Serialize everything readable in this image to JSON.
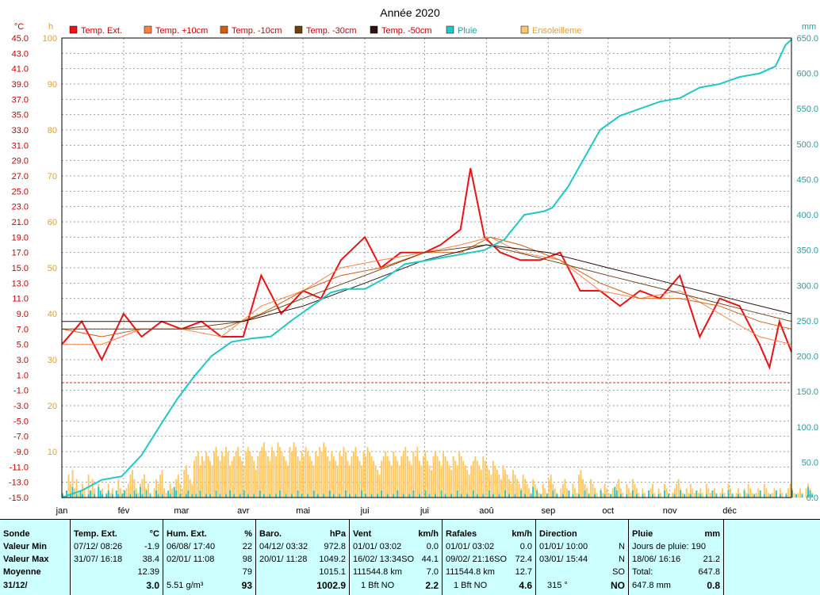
{
  "chart_data": {
    "type": "line",
    "title": "Année 2020",
    "left_unit": "°C",
    "sun_unit": "h",
    "rain_unit": "mm",
    "temp_axis": {
      "min": -15,
      "max": 45,
      "step": 2,
      "ticks": [
        "45.0",
        "43.0",
        "41.0",
        "39.0",
        "37.0",
        "35.0",
        "33.0",
        "31.0",
        "29.0",
        "27.0",
        "25.0",
        "23.0",
        "21.0",
        "19.0",
        "17.0",
        "15.0",
        "13.0",
        "11.0",
        "9.0",
        "7.0",
        "5.0",
        "3.0",
        "1.0",
        "-1.0",
        "-3.0",
        "-5.0",
        "-7.0",
        "-9.0",
        "-11.0",
        "-13.0",
        "-15.0"
      ]
    },
    "sun_axis": {
      "min": 0,
      "max": 100,
      "ticks": [
        "100",
        "90",
        "80",
        "70",
        "60",
        "50",
        "40",
        "30",
        "20",
        "10"
      ]
    },
    "rain_axis": {
      "min": 0,
      "max": 650,
      "ticks": [
        "650.0",
        "600.0",
        "550.0",
        "500.0",
        "450.0",
        "400.0",
        "350.0",
        "300.0",
        "250.0",
        "200.0",
        "150.0",
        "100.0",
        "50.0",
        "0.0"
      ]
    },
    "months": [
      "jan",
      "fév",
      "mar",
      "avr",
      "mai",
      "jui",
      "jui",
      "aoû",
      "sep",
      "oct",
      "nov",
      "déc"
    ],
    "frost_line": 0,
    "legend": [
      {
        "name": "Temp. Ext.",
        "color": "#ee1111"
      },
      {
        "name": "Temp. +10cm",
        "color": "#ff8040"
      },
      {
        "name": "Temp. -10cm",
        "color": "#d06010"
      },
      {
        "name": "Temp. -30cm",
        "color": "#704010"
      },
      {
        "name": "Temp. -50cm",
        "color": "#301010"
      },
      {
        "name": "Pluie",
        "color": "#20c8c8"
      },
      {
        "name": "Ensoleilleme",
        "color": "#ffc860"
      }
    ],
    "series": [
      {
        "name": "Temp. Ext.",
        "x": [
          0,
          10,
          20,
          31,
          40,
          50,
          60,
          70,
          80,
          91,
          100,
          110,
          121,
          130,
          140,
          152,
          160,
          170,
          182,
          190,
          200,
          205,
          212,
          220,
          230,
          240,
          250,
          260,
          270,
          280,
          290,
          300,
          310,
          320,
          330,
          340,
          350,
          355,
          360,
          366
        ],
        "values": [
          5,
          8,
          3,
          9,
          6,
          8,
          7,
          8,
          6,
          6,
          14,
          9,
          12,
          11,
          16,
          19,
          15,
          17,
          17,
          18,
          20,
          28,
          19,
          17,
          16,
          16,
          17,
          12,
          12,
          10,
          12,
          11,
          14,
          6,
          11,
          10,
          5,
          2,
          8,
          4
        ]
      },
      {
        "name": "Temp. +10cm",
        "x": [
          0,
          20,
          40,
          60,
          80,
          100,
          121,
          140,
          160,
          182,
          200,
          215,
          230,
          250,
          270,
          290,
          310,
          330,
          350,
          366
        ],
        "values": [
          5,
          5,
          7,
          7,
          6,
          10,
          12,
          15,
          16,
          17,
          18,
          19,
          17,
          16,
          12,
          11,
          12,
          9,
          6,
          5
        ]
      },
      {
        "name": "Temp. -10cm",
        "x": [
          0,
          20,
          40,
          60,
          80,
          100,
          121,
          140,
          160,
          182,
          200,
          215,
          230,
          250,
          270,
          290,
          310,
          330,
          350,
          366
        ],
        "values": [
          7,
          6,
          7,
          7,
          7,
          9,
          12,
          14,
          15,
          17,
          17,
          19,
          18,
          16,
          13,
          11,
          11,
          10,
          8,
          7
        ]
      },
      {
        "name": "Temp. -30cm",
        "x": [
          0,
          30,
          60,
          91,
          121,
          152,
          182,
          213,
          244,
          274,
          305,
          335,
          366
        ],
        "values": [
          7,
          7,
          7,
          8,
          11,
          14,
          17,
          18,
          16,
          14,
          12,
          10,
          8
        ]
      },
      {
        "name": "Temp. -50cm",
        "x": [
          0,
          30,
          60,
          91,
          121,
          152,
          182,
          213,
          244,
          274,
          305,
          335,
          366
        ],
        "values": [
          8,
          8,
          8,
          8,
          10,
          13,
          16,
          18,
          17,
          15,
          13,
          11,
          9
        ]
      },
      {
        "name": "Pluie",
        "x": [
          0,
          10,
          20,
          30,
          40,
          50,
          58,
          66,
          75,
          85,
          95,
          105,
          115,
          125,
          135,
          142,
          152,
          162,
          172,
          182,
          192,
          202,
          212,
          222,
          232,
          242,
          246,
          254,
          262,
          270,
          280,
          290,
          300,
          310,
          320,
          330,
          340,
          350,
          358,
          363,
          366
        ],
        "values": [
          0,
          10,
          25,
          30,
          60,
          105,
          140,
          170,
          200,
          220,
          225,
          228,
          250,
          270,
          290,
          295,
          295,
          310,
          330,
          335,
          340,
          345,
          350,
          365,
          400,
          405,
          410,
          440,
          480,
          520,
          540,
          550,
          560,
          565,
          580,
          585,
          595,
          600,
          610,
          640,
          648
        ]
      }
    ],
    "sunshine_hours": [
      1,
      0,
      0,
      5,
      3,
      6,
      2,
      4,
      1,
      0,
      3,
      2,
      0,
      5,
      1,
      4,
      2,
      0,
      3,
      1,
      2,
      0,
      1,
      3,
      1,
      2,
      0,
      1,
      4,
      2,
      1,
      0,
      2,
      3,
      5,
      6,
      4,
      2,
      1,
      3,
      4,
      5,
      2,
      3,
      1,
      0,
      2,
      4,
      3,
      5,
      6,
      2,
      1,
      0,
      3,
      2,
      1,
      4,
      5,
      3,
      2,
      6,
      7,
      5,
      4,
      3,
      8,
      9,
      10,
      7,
      9,
      8,
      10,
      9,
      8,
      7,
      10,
      11,
      9,
      8,
      10,
      9,
      11,
      10,
      7,
      8,
      9,
      10,
      11,
      9,
      8,
      7,
      10,
      11,
      10,
      9,
      8,
      6,
      9,
      10,
      11,
      12,
      10,
      9,
      8,
      11,
      10,
      9,
      12,
      11,
      10,
      9,
      8,
      7,
      11,
      10,
      12,
      11,
      9,
      8,
      10,
      9,
      11,
      10,
      9,
      8,
      7,
      10,
      9,
      11,
      10,
      12,
      11,
      9,
      8,
      10,
      9,
      8,
      7,
      10,
      9,
      11,
      10,
      8,
      7,
      9,
      10,
      11,
      9,
      8,
      7,
      10,
      9,
      11,
      10,
      9,
      8,
      7,
      6,
      5,
      8,
      9,
      10,
      9,
      8,
      7,
      10,
      9,
      8,
      7,
      9,
      10,
      11,
      9,
      8,
      7,
      10,
      9,
      11,
      8,
      7,
      9,
      10,
      8,
      7,
      6,
      9,
      10,
      9,
      8,
      7,
      10,
      9,
      8,
      7,
      6,
      9,
      8,
      7,
      10,
      9,
      8,
      7,
      6,
      5,
      7,
      8,
      9,
      8,
      7,
      6,
      9,
      8,
      7,
      6,
      5,
      8,
      7,
      6,
      5,
      4,
      7,
      6,
      5,
      4,
      3,
      6,
      5,
      4,
      3,
      2,
      5,
      4,
      3,
      2,
      1,
      4,
      3,
      2,
      1,
      0,
      3,
      2,
      1,
      4,
      5,
      3,
      2,
      1,
      0,
      2,
      3,
      4,
      2,
      1,
      0,
      3,
      2,
      1,
      5,
      6,
      4,
      3,
      2,
      1,
      4,
      3,
      2,
      1,
      0,
      2,
      1,
      3,
      2,
      1,
      0,
      2,
      1,
      3,
      4,
      2,
      1,
      0,
      3,
      2,
      1,
      4,
      3,
      2,
      1,
      0,
      2,
      1,
      0,
      1,
      2,
      3,
      1,
      0,
      2,
      1,
      0,
      3,
      2,
      1,
      0,
      1,
      2,
      3,
      4,
      2,
      1,
      0,
      2,
      1,
      3,
      2,
      1,
      0,
      1,
      2,
      1,
      0,
      3,
      2,
      1,
      0,
      2,
      1,
      0,
      1,
      2,
      1,
      0,
      3,
      2,
      1,
      0,
      1,
      2,
      1,
      0,
      2,
      1,
      3,
      2,
      1,
      0,
      1,
      2,
      1,
      0,
      3,
      2,
      1,
      0,
      1,
      2,
      1,
      0,
      2,
      1,
      0,
      1,
      2,
      3,
      2,
      1,
      0,
      1,
      2,
      1,
      0,
      2,
      3,
      2,
      1
    ],
    "daily_rain_bars": [
      1,
      0,
      2,
      0,
      1,
      3,
      0,
      1,
      0,
      2,
      1,
      0,
      0,
      1,
      2,
      0,
      1,
      0,
      3,
      2,
      1,
      0,
      1,
      2,
      0,
      1,
      0,
      2,
      1,
      0,
      1,
      2,
      0,
      0,
      1,
      0,
      2,
      1,
      0,
      3,
      1,
      0,
      2,
      0,
      1,
      0,
      0,
      2,
      1,
      0,
      1,
      0,
      0,
      2,
      1,
      0,
      3,
      2,
      0,
      1,
      0,
      0,
      1,
      2,
      0,
      1,
      0,
      1,
      0,
      2,
      0,
      0,
      1,
      0,
      1,
      0,
      0,
      2,
      0,
      1,
      0,
      0,
      1,
      0,
      2,
      0,
      1,
      0,
      0,
      1,
      0,
      2,
      0,
      1,
      0,
      0,
      1,
      0,
      0,
      2,
      0,
      1,
      0,
      0,
      1,
      0,
      0,
      1,
      0,
      2,
      0,
      0,
      1,
      0,
      0,
      1,
      0,
      0,
      2,
      0,
      1,
      0,
      0,
      1,
      0,
      0,
      2,
      0,
      1,
      0,
      0,
      1,
      0,
      0,
      2,
      0,
      1,
      0,
      0,
      1,
      0,
      0,
      2,
      0,
      1,
      0,
      0,
      1,
      0,
      0,
      2,
      0,
      1,
      0,
      0,
      1,
      0,
      0,
      1,
      0,
      2,
      0,
      0,
      1,
      0,
      0,
      1,
      0,
      2,
      0,
      0,
      1,
      0,
      0,
      1,
      0,
      2,
      0,
      0,
      1,
      0,
      0,
      2,
      0,
      1,
      0,
      0,
      1,
      0,
      0,
      2,
      0,
      1,
      0,
      0,
      1,
      0,
      0,
      2,
      0,
      1,
      0,
      0,
      1,
      0,
      0,
      2,
      0,
      1,
      0,
      0,
      1,
      0,
      0,
      2,
      0,
      1,
      0,
      0,
      1,
      0,
      0,
      2,
      0,
      1,
      0,
      0,
      1,
      0,
      0,
      2,
      0,
      1,
      0,
      0,
      1,
      3,
      0,
      2,
      0,
      1,
      0,
      0,
      1,
      0,
      0,
      2,
      0,
      1,
      0,
      0,
      1,
      0,
      0,
      2,
      0,
      1,
      0,
      0,
      1,
      0,
      0,
      2,
      0,
      1,
      0,
      0,
      1,
      0,
      0,
      2,
      0,
      1,
      0,
      0,
      1,
      0,
      3,
      2,
      0,
      1,
      0,
      0,
      1,
      0,
      0,
      2,
      0,
      1,
      0,
      0,
      1,
      0,
      0,
      2,
      0,
      1,
      0,
      0,
      1,
      0,
      0,
      2,
      0,
      1,
      0,
      0,
      1,
      0,
      0,
      2,
      0,
      1,
      0,
      0,
      1,
      0,
      0,
      2,
      0,
      1,
      0,
      0,
      1,
      0,
      0,
      2,
      0,
      1,
      0,
      0,
      1,
      0,
      0,
      2,
      0,
      1,
      0,
      0,
      1,
      0,
      0,
      2,
      0,
      1,
      0,
      0,
      1,
      0,
      0,
      2,
      0,
      1,
      0,
      0,
      1,
      0,
      0,
      2,
      0,
      1,
      0,
      0,
      1,
      0,
      0,
      2,
      0,
      1,
      0,
      0,
      1,
      0,
      0,
      3,
      2,
      1
    ]
  },
  "stats": {
    "sonde": {
      "title": "Sonde",
      "min": "Valeur Min",
      "max": "Valeur Max",
      "avg": "Moyenne",
      "date": "31/12/"
    },
    "temp": {
      "title": "Temp. Ext.",
      "unit": "°C",
      "min_dt": "07/12/  08:26",
      "min_v": "-1.9",
      "max_dt": "31/07/  16:18",
      "max_v": "38.4",
      "avg": "12.39",
      "last": "3.0"
    },
    "hum": {
      "title": "Hum. Ext.",
      "unit": "%",
      "min_dt": "06/08/  17:40",
      "min_v": "22",
      "max_dt": "02/01/  11:08",
      "max_v": "98",
      "avg": "79",
      "extra": "5.51 g/m³",
      "last": "93"
    },
    "baro": {
      "title": "Baro.",
      "unit": "hPa",
      "min_dt": "04/12/  03:32",
      "min_v": "972.8",
      "max_dt": "20/01/  11:28",
      "max_v": "1049.2",
      "avg": "1015.1",
      "last": "1002.9"
    },
    "vent": {
      "title": "Vent",
      "unit": "km/h",
      "min_dt": "01/01/  03:02",
      "min_v": "0.0",
      "max_dt": "16/02/  13:34SO",
      "max_v": "44.1",
      "km": "111544.8 km",
      "avg": "7.0",
      "bft": "1 Bft NO",
      "last": "2.2"
    },
    "raf": {
      "title": "Rafales",
      "unit": "km/h",
      "min_dt": "01/01/  03:02",
      "min_v": "0.0",
      "max_dt": "09/02/  21:16SO",
      "max_v": "72.4",
      "km": "111544.8 km",
      "avg": "12.7",
      "bft": "1 Bft NO",
      "last": "4.6"
    },
    "dir": {
      "title": "Direction",
      "min_dt": "01/01/  10:00",
      "min_v": "N",
      "max_dt": "03/01/  15:44",
      "max_v": "N",
      "avg": "SO",
      "deg": "315 °",
      "last": "NO"
    },
    "pluie": {
      "title": "Pluie",
      "unit": "mm",
      "days": "Jours de pluie: 190",
      "max_dt": "18/06/  16:16",
      "max_v": "21.2",
      "total_l": "Total:",
      "total_v": "647.8",
      "last_total": "647.8 mm",
      "last": "0.8"
    }
  }
}
